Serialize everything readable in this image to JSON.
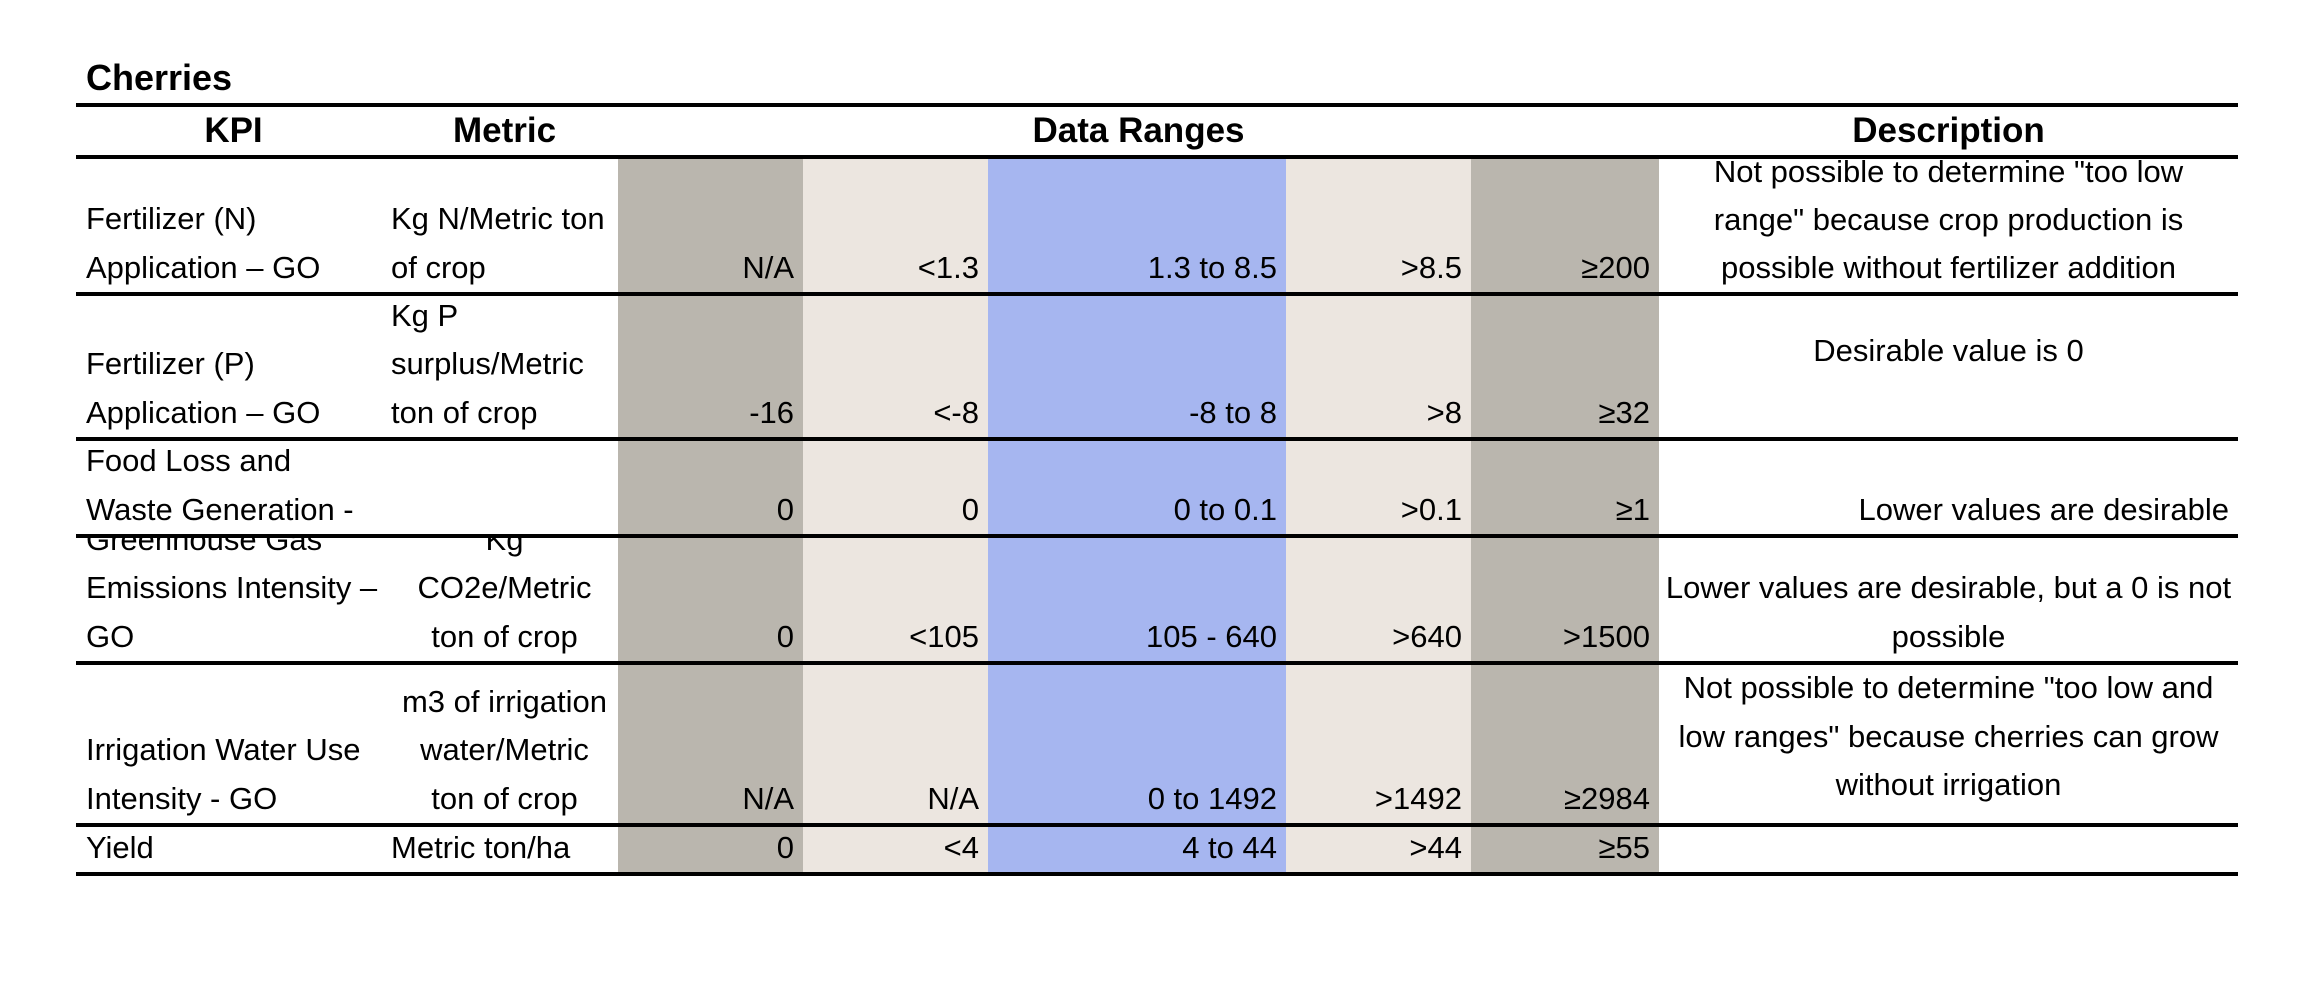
{
  "sheet_title": "Cherries",
  "headers": {
    "kpi": "KPI",
    "metric": "Metric",
    "data_ranges": "Data Ranges",
    "description": "Description"
  },
  "range_colors": {
    "outer": "#bab6ae",
    "mid": "#ece6e0",
    "desirable": "#a6b6f0"
  },
  "rows": [
    {
      "kpi": [
        "Fertilizer (N)",
        "Application – GO"
      ],
      "metric": [
        "Kg N/Metric ton",
        "of crop"
      ],
      "ranges": [
        "N/A",
        "<1.3",
        "1.3 to 8.5",
        ">8.5",
        "≥200"
      ],
      "description": [
        "Not possible to determine \"too low",
        "range\" because crop production is",
        "possible without fertilizer addition"
      ]
    },
    {
      "kpi": [
        "Fertilizer (P)",
        "Application – GO"
      ],
      "metric": [
        "Kg P",
        "surplus/Metric",
        "ton of crop"
      ],
      "ranges": [
        "-16",
        "<-8",
        "-8 to 8",
        ">8",
        "≥32"
      ],
      "description": [
        "Desirable value is 0"
      ]
    },
    {
      "kpi": [
        "Food Loss and",
        "Waste Generation -"
      ],
      "metric": [],
      "ranges": [
        "0",
        "0",
        "0 to 0.1",
        ">0.1",
        "≥1"
      ],
      "description": [
        "Lower values are desirable"
      ]
    },
    {
      "kpi": [
        "Greenhouse Gas",
        "Emissions Intensity –",
        "GO"
      ],
      "metric": [
        "Kg",
        "CO2e/Metric",
        "ton of crop"
      ],
      "ranges": [
        "0",
        "<105",
        "105 - 640",
        ">640",
        ">1500"
      ],
      "description": [
        "Lower values are desirable, but a 0 is not",
        "possible"
      ]
    },
    {
      "kpi": [
        "Irrigation Water Use",
        "Intensity - GO"
      ],
      "metric": [
        "m3 of irrigation",
        "water/Metric",
        "ton of crop"
      ],
      "ranges": [
        "N/A",
        "N/A",
        "0 to 1492",
        ">1492",
        "≥2984"
      ],
      "description": [
        "Not possible to determine \"too low and",
        "low ranges\" because cherries can grow",
        "without irrigation"
      ]
    },
    {
      "kpi": [
        "Yield"
      ],
      "metric": [
        "Metric ton/ha"
      ],
      "ranges": [
        "0",
        "<4",
        "4  to 44",
        ">44",
        "≥55"
      ],
      "description": []
    }
  ]
}
